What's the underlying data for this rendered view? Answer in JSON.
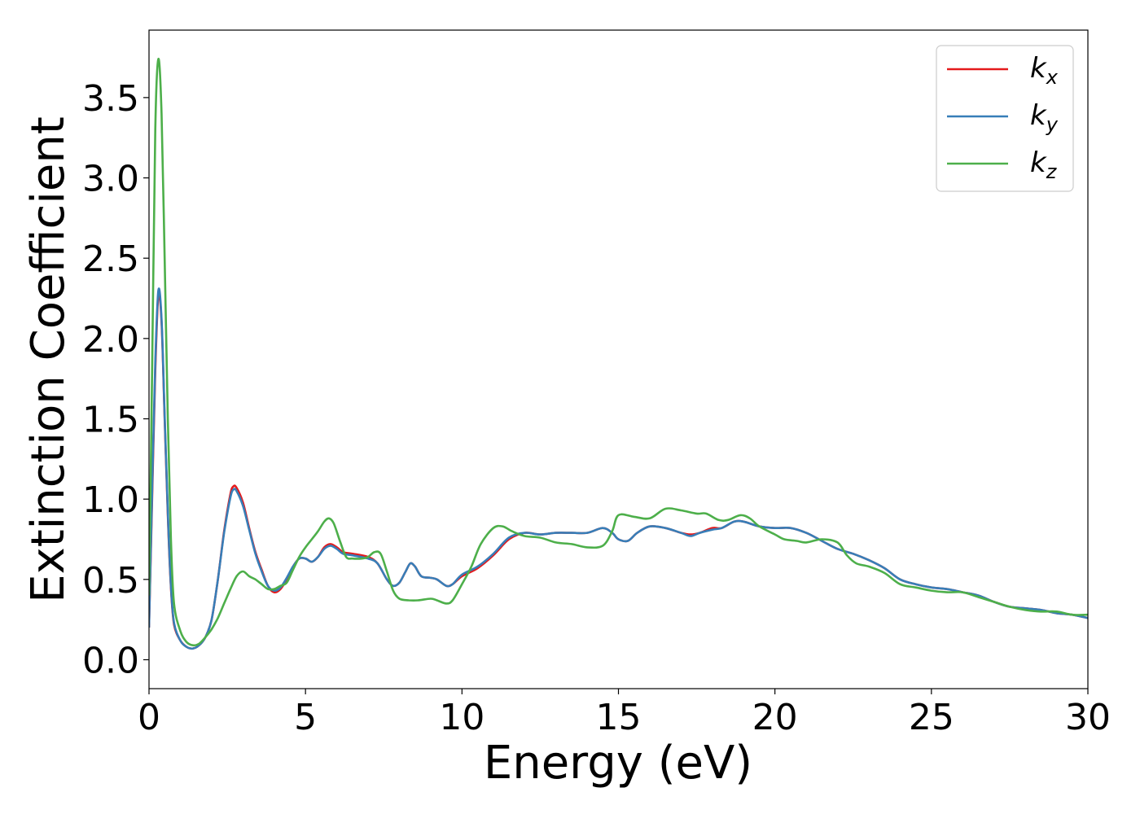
{
  "chart_data": {
    "type": "line",
    "title": "",
    "xlabel": "Energy (eV)",
    "ylabel": "Extinction Coefficient",
    "xlim": [
      0,
      30
    ],
    "ylim": [
      -0.18,
      3.92
    ],
    "xticks": [
      0,
      5,
      10,
      15,
      20,
      25,
      30
    ],
    "xtick_labels": [
      "0",
      "5",
      "10",
      "15",
      "20",
      "25",
      "30"
    ],
    "yticks": [
      0.0,
      0.5,
      1.0,
      1.5,
      2.0,
      2.5,
      3.0,
      3.5
    ],
    "ytick_labels": [
      "0.0",
      "0.5",
      "1.0",
      "1.5",
      "2.0",
      "2.5",
      "3.0",
      "3.5"
    ],
    "grid": false,
    "legend_position": "top-right",
    "series": [
      {
        "name": "k",
        "subscript": "x",
        "color": "#e41a1c",
        "points": [
          [
            0,
            0.2
          ],
          [
            0.1,
            1.0
          ],
          [
            0.2,
            1.8
          ],
          [
            0.3,
            2.27
          ],
          [
            0.4,
            2.1
          ],
          [
            0.5,
            1.5
          ],
          [
            0.6,
            0.9
          ],
          [
            0.7,
            0.45
          ],
          [
            0.8,
            0.22
          ],
          [
            1.0,
            0.12
          ],
          [
            1.2,
            0.08
          ],
          [
            1.4,
            0.07
          ],
          [
            1.6,
            0.09
          ],
          [
            1.8,
            0.14
          ],
          [
            2.0,
            0.25
          ],
          [
            2.2,
            0.5
          ],
          [
            2.4,
            0.8
          ],
          [
            2.6,
            1.03
          ],
          [
            2.7,
            1.08
          ],
          [
            2.8,
            1.07
          ],
          [
            3.0,
            0.98
          ],
          [
            3.2,
            0.82
          ],
          [
            3.4,
            0.67
          ],
          [
            3.6,
            0.56
          ],
          [
            3.8,
            0.46
          ],
          [
            4.0,
            0.42
          ],
          [
            4.2,
            0.44
          ],
          [
            4.4,
            0.5
          ],
          [
            4.6,
            0.58
          ],
          [
            4.8,
            0.63
          ],
          [
            5.0,
            0.63
          ],
          [
            5.2,
            0.61
          ],
          [
            5.4,
            0.64
          ],
          [
            5.6,
            0.7
          ],
          [
            5.8,
            0.72
          ],
          [
            6.0,
            0.7
          ],
          [
            6.2,
            0.67
          ],
          [
            6.5,
            0.66
          ],
          [
            7.0,
            0.64
          ],
          [
            7.3,
            0.6
          ],
          [
            7.6,
            0.5
          ],
          [
            7.8,
            0.46
          ],
          [
            8.0,
            0.48
          ],
          [
            8.2,
            0.55
          ],
          [
            8.35,
            0.6
          ],
          [
            8.5,
            0.58
          ],
          [
            8.7,
            0.52
          ],
          [
            9.0,
            0.51
          ],
          [
            9.2,
            0.5
          ],
          [
            9.5,
            0.46
          ],
          [
            9.7,
            0.47
          ],
          [
            10.0,
            0.52
          ],
          [
            10.5,
            0.57
          ],
          [
            11.0,
            0.65
          ],
          [
            11.5,
            0.75
          ],
          [
            12.0,
            0.79
          ],
          [
            12.5,
            0.78
          ],
          [
            13.0,
            0.79
          ],
          [
            13.5,
            0.79
          ],
          [
            14.0,
            0.79
          ],
          [
            14.5,
            0.82
          ],
          [
            14.8,
            0.79
          ],
          [
            15.0,
            0.75
          ],
          [
            15.3,
            0.74
          ],
          [
            15.6,
            0.79
          ],
          [
            16.0,
            0.83
          ],
          [
            16.5,
            0.82
          ],
          [
            17.0,
            0.79
          ],
          [
            17.3,
            0.78
          ],
          [
            17.6,
            0.79
          ],
          [
            18.0,
            0.82
          ],
          [
            18.3,
            0.82
          ],
          [
            18.7,
            0.86
          ],
          [
            19.0,
            0.86
          ],
          [
            19.5,
            0.83
          ],
          [
            20.0,
            0.82
          ],
          [
            20.5,
            0.82
          ],
          [
            21.0,
            0.79
          ],
          [
            21.5,
            0.74
          ],
          [
            22.0,
            0.69
          ],
          [
            22.5,
            0.66
          ],
          [
            23.0,
            0.62
          ],
          [
            23.5,
            0.57
          ],
          [
            24.0,
            0.5
          ],
          [
            24.5,
            0.47
          ],
          [
            25.0,
            0.45
          ],
          [
            25.5,
            0.44
          ],
          [
            26.0,
            0.42
          ],
          [
            26.5,
            0.4
          ],
          [
            27.0,
            0.36
          ],
          [
            27.5,
            0.33
          ],
          [
            28.0,
            0.32
          ],
          [
            28.5,
            0.31
          ],
          [
            29.0,
            0.29
          ],
          [
            29.5,
            0.28
          ],
          [
            30.0,
            0.26
          ]
        ]
      },
      {
        "name": "k",
        "subscript": "y",
        "color": "#377eb8",
        "points": [
          [
            0,
            0.2
          ],
          [
            0.1,
            1.05
          ],
          [
            0.2,
            1.85
          ],
          [
            0.3,
            2.3
          ],
          [
            0.4,
            2.12
          ],
          [
            0.5,
            1.52
          ],
          [
            0.6,
            0.92
          ],
          [
            0.7,
            0.46
          ],
          [
            0.8,
            0.23
          ],
          [
            1.0,
            0.12
          ],
          [
            1.2,
            0.08
          ],
          [
            1.4,
            0.07
          ],
          [
            1.6,
            0.09
          ],
          [
            1.8,
            0.14
          ],
          [
            2.0,
            0.25
          ],
          [
            2.2,
            0.5
          ],
          [
            2.4,
            0.79
          ],
          [
            2.6,
            1.01
          ],
          [
            2.7,
            1.06
          ],
          [
            2.8,
            1.05
          ],
          [
            3.0,
            0.96
          ],
          [
            3.2,
            0.81
          ],
          [
            3.4,
            0.66
          ],
          [
            3.6,
            0.55
          ],
          [
            3.8,
            0.46
          ],
          [
            4.0,
            0.43
          ],
          [
            4.2,
            0.45
          ],
          [
            4.4,
            0.51
          ],
          [
            4.6,
            0.58
          ],
          [
            4.8,
            0.63
          ],
          [
            5.0,
            0.63
          ],
          [
            5.2,
            0.61
          ],
          [
            5.4,
            0.64
          ],
          [
            5.6,
            0.69
          ],
          [
            5.8,
            0.71
          ],
          [
            6.0,
            0.69
          ],
          [
            6.2,
            0.66
          ],
          [
            6.5,
            0.65
          ],
          [
            7.0,
            0.63
          ],
          [
            7.3,
            0.6
          ],
          [
            7.6,
            0.5
          ],
          [
            7.8,
            0.46
          ],
          [
            8.0,
            0.48
          ],
          [
            8.2,
            0.55
          ],
          [
            8.35,
            0.6
          ],
          [
            8.5,
            0.58
          ],
          [
            8.7,
            0.52
          ],
          [
            9.0,
            0.51
          ],
          [
            9.2,
            0.5
          ],
          [
            9.5,
            0.46
          ],
          [
            9.7,
            0.47
          ],
          [
            10.0,
            0.53
          ],
          [
            10.5,
            0.58
          ],
          [
            11.0,
            0.66
          ],
          [
            11.5,
            0.76
          ],
          [
            12.0,
            0.79
          ],
          [
            12.5,
            0.78
          ],
          [
            13.0,
            0.79
          ],
          [
            13.5,
            0.79
          ],
          [
            14.0,
            0.79
          ],
          [
            14.5,
            0.82
          ],
          [
            14.8,
            0.79
          ],
          [
            15.0,
            0.75
          ],
          [
            15.3,
            0.74
          ],
          [
            15.6,
            0.79
          ],
          [
            16.0,
            0.83
          ],
          [
            16.5,
            0.82
          ],
          [
            17.0,
            0.79
          ],
          [
            17.3,
            0.77
          ],
          [
            17.6,
            0.79
          ],
          [
            18.0,
            0.81
          ],
          [
            18.3,
            0.82
          ],
          [
            18.7,
            0.86
          ],
          [
            19.0,
            0.86
          ],
          [
            19.5,
            0.83
          ],
          [
            20.0,
            0.82
          ],
          [
            20.5,
            0.82
          ],
          [
            21.0,
            0.79
          ],
          [
            21.5,
            0.74
          ],
          [
            22.0,
            0.69
          ],
          [
            22.5,
            0.66
          ],
          [
            23.0,
            0.62
          ],
          [
            23.5,
            0.57
          ],
          [
            24.0,
            0.5
          ],
          [
            24.5,
            0.47
          ],
          [
            25.0,
            0.45
          ],
          [
            25.5,
            0.44
          ],
          [
            26.0,
            0.42
          ],
          [
            26.5,
            0.4
          ],
          [
            27.0,
            0.36
          ],
          [
            27.5,
            0.33
          ],
          [
            28.0,
            0.32
          ],
          [
            28.5,
            0.31
          ],
          [
            29.0,
            0.29
          ],
          [
            29.5,
            0.28
          ],
          [
            30.0,
            0.26
          ]
        ]
      },
      {
        "name": "k",
        "subscript": "z",
        "color": "#4daf4a",
        "points": [
          [
            0,
            0.4
          ],
          [
            0.1,
            1.8
          ],
          [
            0.2,
            3.3
          ],
          [
            0.3,
            3.74
          ],
          [
            0.4,
            3.4
          ],
          [
            0.5,
            2.5
          ],
          [
            0.6,
            1.5
          ],
          [
            0.7,
            0.75
          ],
          [
            0.8,
            0.35
          ],
          [
            1.0,
            0.18
          ],
          [
            1.2,
            0.11
          ],
          [
            1.4,
            0.09
          ],
          [
            1.6,
            0.1
          ],
          [
            1.8,
            0.14
          ],
          [
            2.0,
            0.19
          ],
          [
            2.2,
            0.26
          ],
          [
            2.4,
            0.35
          ],
          [
            2.6,
            0.44
          ],
          [
            2.8,
            0.52
          ],
          [
            3.0,
            0.55
          ],
          [
            3.2,
            0.52
          ],
          [
            3.4,
            0.5
          ],
          [
            3.6,
            0.47
          ],
          [
            3.8,
            0.44
          ],
          [
            4.0,
            0.44
          ],
          [
            4.2,
            0.46
          ],
          [
            4.4,
            0.48
          ],
          [
            4.6,
            0.56
          ],
          [
            4.8,
            0.64
          ],
          [
            5.0,
            0.7
          ],
          [
            5.2,
            0.75
          ],
          [
            5.4,
            0.8
          ],
          [
            5.6,
            0.86
          ],
          [
            5.75,
            0.88
          ],
          [
            5.9,
            0.85
          ],
          [
            6.1,
            0.74
          ],
          [
            6.3,
            0.64
          ],
          [
            6.5,
            0.63
          ],
          [
            6.8,
            0.63
          ],
          [
            7.0,
            0.64
          ],
          [
            7.2,
            0.67
          ],
          [
            7.4,
            0.66
          ],
          [
            7.6,
            0.55
          ],
          [
            7.8,
            0.43
          ],
          [
            8.0,
            0.38
          ],
          [
            8.3,
            0.37
          ],
          [
            8.6,
            0.37
          ],
          [
            9.0,
            0.38
          ],
          [
            9.2,
            0.37
          ],
          [
            9.5,
            0.35
          ],
          [
            9.7,
            0.37
          ],
          [
            10.0,
            0.47
          ],
          [
            10.3,
            0.58
          ],
          [
            10.6,
            0.72
          ],
          [
            11.0,
            0.82
          ],
          [
            11.3,
            0.83
          ],
          [
            11.6,
            0.8
          ],
          [
            12.0,
            0.77
          ],
          [
            12.5,
            0.76
          ],
          [
            13.0,
            0.73
          ],
          [
            13.5,
            0.72
          ],
          [
            14.0,
            0.7
          ],
          [
            14.5,
            0.71
          ],
          [
            14.8,
            0.8
          ],
          [
            15.0,
            0.9
          ],
          [
            15.5,
            0.89
          ],
          [
            16.0,
            0.88
          ],
          [
            16.5,
            0.94
          ],
          [
            17.0,
            0.93
          ],
          [
            17.5,
            0.91
          ],
          [
            17.8,
            0.91
          ],
          [
            18.2,
            0.87
          ],
          [
            18.5,
            0.87
          ],
          [
            18.9,
            0.9
          ],
          [
            19.2,
            0.88
          ],
          [
            19.5,
            0.83
          ],
          [
            20.0,
            0.78
          ],
          [
            20.3,
            0.75
          ],
          [
            20.7,
            0.74
          ],
          [
            21.0,
            0.73
          ],
          [
            21.5,
            0.75
          ],
          [
            22.0,
            0.73
          ],
          [
            22.3,
            0.65
          ],
          [
            22.6,
            0.6
          ],
          [
            23.0,
            0.58
          ],
          [
            23.5,
            0.54
          ],
          [
            24.0,
            0.47
          ],
          [
            24.5,
            0.45
          ],
          [
            25.0,
            0.43
          ],
          [
            25.5,
            0.42
          ],
          [
            26.0,
            0.42
          ],
          [
            26.5,
            0.39
          ],
          [
            27.0,
            0.36
          ],
          [
            27.5,
            0.33
          ],
          [
            28.0,
            0.31
          ],
          [
            28.5,
            0.3
          ],
          [
            29.0,
            0.3
          ],
          [
            29.5,
            0.28
          ],
          [
            30.0,
            0.28
          ]
        ]
      }
    ]
  }
}
